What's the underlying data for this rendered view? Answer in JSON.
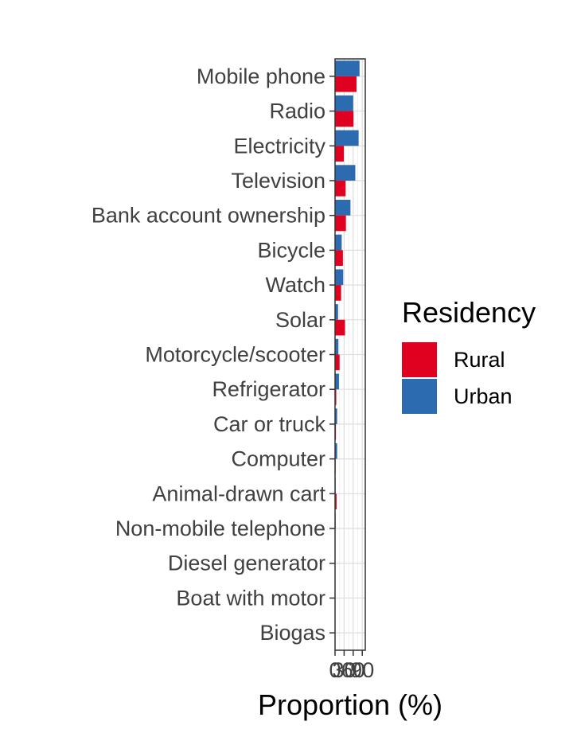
{
  "chart_data": {
    "type": "bar",
    "orientation": "horizontal",
    "categories": [
      "Mobile phone",
      "Radio",
      "Electricity",
      "Television",
      "Bank account ownership",
      "Bicycle",
      "Watch",
      "Solar",
      "Motorcycle/scooter",
      "Refrigerator",
      "Car or truck",
      "Computer",
      "Animal-drawn cart",
      "Non-mobile telephone",
      "Diesel generator",
      "Boat with motor",
      "Biogas"
    ],
    "series": [
      {
        "name": "Rural",
        "color": "#e00020",
        "values": [
          71,
          61,
          29,
          35,
          36,
          26,
          20,
          33,
          15,
          4,
          3,
          2,
          5,
          1,
          1,
          1,
          0
        ]
      },
      {
        "name": "Urban",
        "color": "#2d6bb0",
        "values": [
          81,
          60,
          78,
          67,
          51,
          22,
          27,
          10,
          11,
          13,
          7,
          7,
          2,
          2,
          1,
          1,
          0
        ]
      }
    ],
    "xlabel": "Proportion (%)",
    "ylabel": "",
    "xlim": [
      0,
      100
    ],
    "xticks": [
      0,
      30,
      60,
      90
    ],
    "grid": true,
    "legend": {
      "title": "Residency",
      "position": "right",
      "entries": [
        "Rural",
        "Urban"
      ]
    }
  }
}
